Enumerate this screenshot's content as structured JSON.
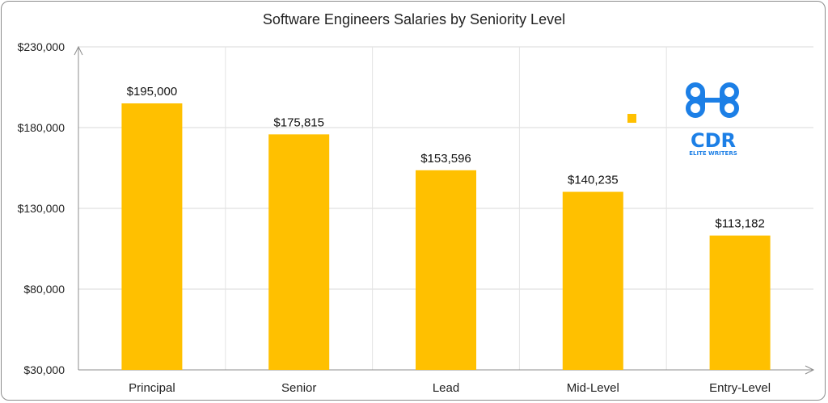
{
  "chart_data": {
    "type": "bar",
    "title": "Software Engineers Salaries by Seniority Level",
    "categories": [
      "Principal",
      "Senior",
      "Lead",
      "Mid-Level",
      "Entry-Level"
    ],
    "values": [
      195000,
      175815,
      153596,
      140235,
      113182
    ],
    "data_labels": [
      "$195,000",
      "$175,815",
      "$153,596",
      "$140,235",
      "$113,182"
    ],
    "y_ticks": [
      30000,
      80000,
      130000,
      180000,
      230000
    ],
    "y_tick_labels": [
      "$30,000",
      "$80,000",
      "$130,000",
      "$180,000",
      "$230,000"
    ],
    "ylim": [
      30000,
      230000
    ],
    "xlabel": "",
    "ylabel": "",
    "grid": true,
    "bar_color": "#FFC000",
    "logo": {
      "text": "CDR",
      "subtext": "ELITE WRITERS",
      "color": "#1C7FE6"
    }
  }
}
